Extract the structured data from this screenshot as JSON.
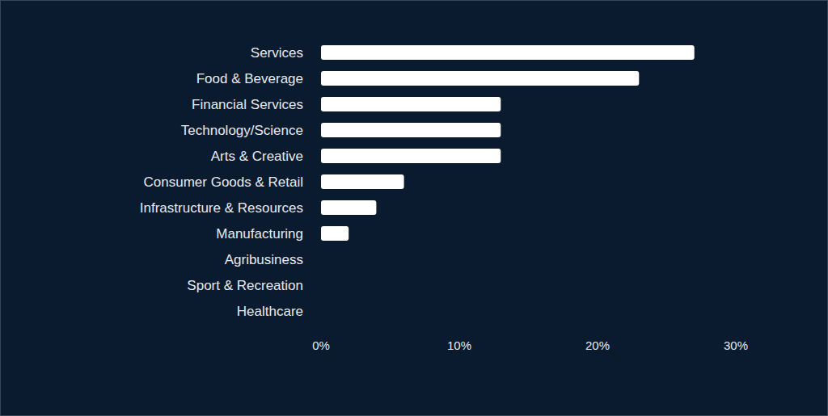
{
  "chart_data": {
    "type": "bar",
    "orientation": "horizontal",
    "categories": [
      "Services",
      "Food & Beverage",
      "Financial Services",
      "Technology/Science",
      "Arts & Creative",
      "Consumer Goods & Retail",
      "Infrastructure & Resources",
      "Manufacturing",
      "Agribusiness",
      "Sport & Recreation",
      "Healthcare"
    ],
    "values": [
      27,
      23,
      13,
      13,
      13,
      6,
      4,
      2,
      0,
      0,
      0
    ],
    "color": "#ffffff",
    "xlim": [
      0,
      30
    ],
    "xticks": [
      {
        "value": 0,
        "label": "0%"
      },
      {
        "value": 10,
        "label": "10%"
      },
      {
        "value": 20,
        "label": "20%"
      },
      {
        "value": 30,
        "label": "30%"
      }
    ],
    "grid": false
  }
}
